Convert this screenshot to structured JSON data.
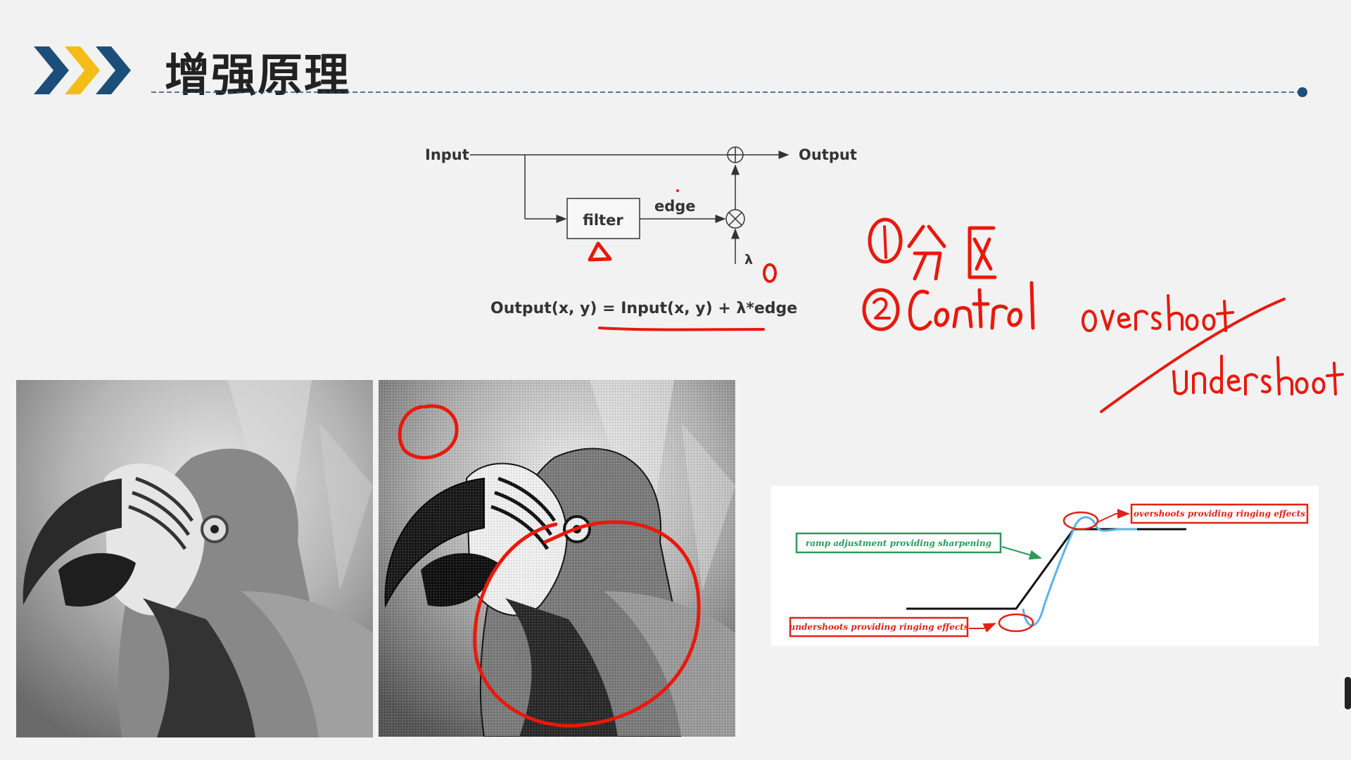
{
  "header": {
    "title": "增强原理",
    "chevron_colors": [
      "#1b4f7a",
      "#f4bc17",
      "#1b4f7a"
    ],
    "rule_color": "#1b4f7a"
  },
  "block_diagram": {
    "input_label": "Input",
    "output_label": "Output",
    "filter_label": "filter",
    "edge_label": "edge",
    "lambda_label": "λ",
    "sum_symbol": "⊕",
    "multiply_symbol": "⊗"
  },
  "formula": {
    "left": "Output(x, y)",
    "equals": " = ",
    "right": "Input(x, y) + λ*edge"
  },
  "annotations": {
    "ink_color": "#e8190c",
    "item_1_number": "①",
    "item_1_text": "分区",
    "item_2_number": "②",
    "item_2_text": "Control",
    "note_overshoot": "overshoot",
    "note_undershoot": "undershoot",
    "filter_mark": "Δ",
    "lambda_mark": "0"
  },
  "images": {
    "original": "Grayscale photo of a macaw parrot head",
    "enhanced": "Edge-enhanced grayscale photo of the same macaw parrot with red circles drawn on it"
  },
  "ringing_figure": {
    "label_ramp": "ramp adjustment providing sharpening",
    "label_overshoot": "overshoots providing ringing effects",
    "label_undershoot": "undershoots providing ringing effects",
    "green_color": "#2a9a5a",
    "red_color": "#e0221a",
    "blue_color": "#5ab4e8"
  }
}
